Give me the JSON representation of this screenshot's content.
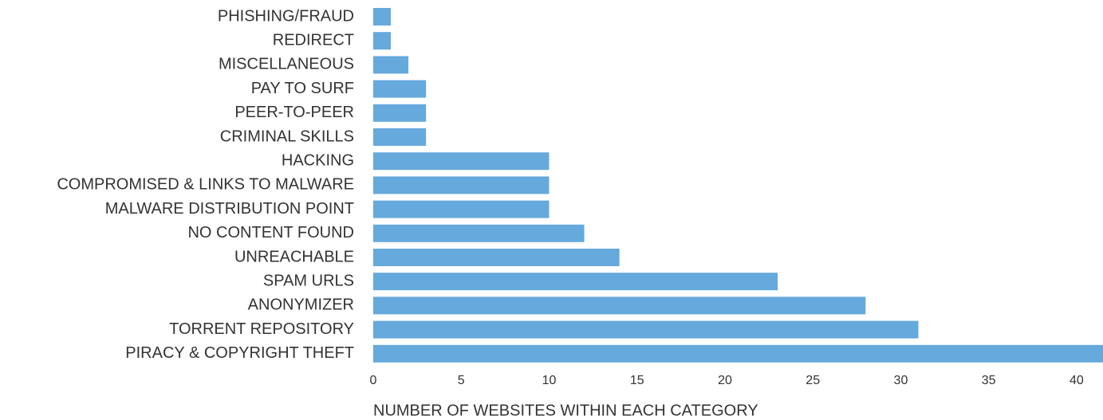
{
  "chart_data": {
    "type": "barh",
    "xlabel": "NUMBER OF WEBSITES WITHIN EACH CATEGORY",
    "categories": [
      "PHISHING/FRAUD",
      "REDIRECT",
      "MISCELLANEOUS",
      "PAY TO SURF",
      "PEER-TO-PEER",
      "CRIMINAL SKILLS",
      "HACKING",
      "COMPROMISED & LINKS TO MALWARE",
      "MALWARE DISTRIBUTION POINT",
      "NO CONTENT FOUND",
      "UNREACHABLE",
      "SPAM URLS",
      "ANONYMIZER",
      "TORRENT REPOSITORY",
      "PIRACY & COPYRIGHT THEFT"
    ],
    "values": [
      1,
      1,
      2,
      3,
      3,
      3,
      10,
      10,
      10,
      12,
      14,
      23,
      28,
      31,
      41.5
    ],
    "color": "#66a9dc",
    "xlim": [
      0,
      41.5
    ],
    "xticks": [
      0,
      5,
      10,
      15,
      20,
      25,
      30,
      35,
      40
    ],
    "grid": false
  }
}
